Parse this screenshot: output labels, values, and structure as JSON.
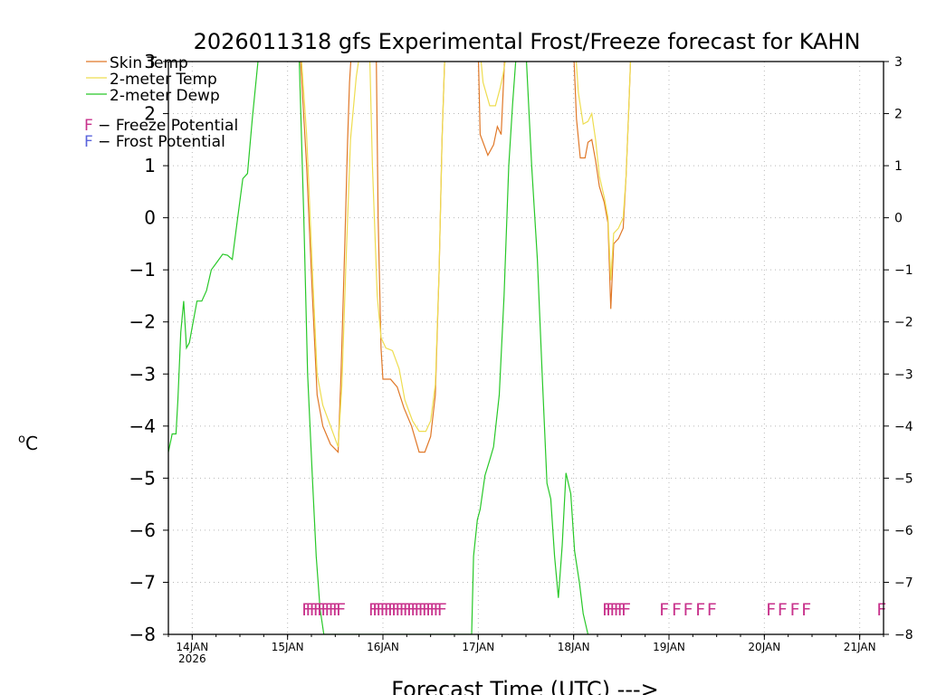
{
  "chart_data": {
    "type": "line",
    "title": "2026011318 gfs Experimental Frost/Freeze forecast for KAHN",
    "xlabel": "Forecast Time (UTC) --->",
    "ylabel": "°C",
    "ylabel_unit": "C",
    "ylabel_degree": "o",
    "ylim": [
      -8,
      3
    ],
    "xlim": [
      -0.25,
      7.25
    ],
    "yticks": [
      -8,
      -7,
      -6,
      -5,
      -4,
      -3,
      -2,
      -1,
      0,
      1,
      2,
      3
    ],
    "ytick_labels": [
      "−8",
      "−7",
      "−6",
      "−5",
      "−4",
      "−3",
      "−2",
      "−1",
      "0",
      "1",
      "2",
      "3"
    ],
    "xticks": [
      {
        "x": 0,
        "label": "14JAN",
        "sublabel": "2026"
      },
      {
        "x": 1,
        "label": "15JAN"
      },
      {
        "x": 2,
        "label": "16JAN"
      },
      {
        "x": 3,
        "label": "17JAN"
      },
      {
        "x": 4,
        "label": "18JAN"
      },
      {
        "x": 5,
        "label": "19JAN"
      },
      {
        "x": 6,
        "label": "20JAN"
      },
      {
        "x": 7,
        "label": "21JAN"
      }
    ],
    "grid": true,
    "series": [
      {
        "name": "Skin Temp",
        "legend": "Skin Temp",
        "color": "#e07828",
        "points": [
          [
            1.13,
            3.2
          ],
          [
            1.2,
            1.0
          ],
          [
            1.26,
            -1.5
          ],
          [
            1.31,
            -3.4
          ],
          [
            1.37,
            -4.0
          ],
          [
            1.45,
            -4.35
          ],
          [
            1.53,
            -4.5
          ],
          [
            1.56,
            -3.0
          ],
          [
            1.6,
            -0.5
          ],
          [
            1.63,
            1.5
          ],
          [
            1.65,
            2.6
          ],
          [
            1.67,
            3.2
          ],
          [
            1.93,
            3.2
          ],
          [
            1.95,
            0.0
          ],
          [
            1.98,
            -2.5
          ],
          [
            2.0,
            -3.1
          ],
          [
            2.08,
            -3.1
          ],
          [
            2.15,
            -3.25
          ],
          [
            2.22,
            -3.65
          ],
          [
            2.3,
            -4.0
          ],
          [
            2.38,
            -4.5
          ],
          [
            2.44,
            -4.5
          ],
          [
            2.5,
            -4.2
          ],
          [
            2.55,
            -3.4
          ],
          [
            2.59,
            -1.0
          ],
          [
            2.62,
            1.5
          ],
          [
            2.65,
            3.2
          ],
          [
            3.0,
            3.2
          ],
          [
            3.02,
            1.6
          ],
          [
            3.1,
            1.2
          ],
          [
            3.16,
            1.4
          ],
          [
            3.2,
            1.75
          ],
          [
            3.24,
            1.6
          ],
          [
            3.28,
            3.2
          ],
          [
            4.0,
            3.2
          ],
          [
            4.03,
            1.9
          ],
          [
            4.07,
            1.15
          ],
          [
            4.12,
            1.15
          ],
          [
            4.15,
            1.45
          ],
          [
            4.19,
            1.5
          ],
          [
            4.23,
            1.1
          ],
          [
            4.27,
            0.6
          ],
          [
            4.32,
            0.3
          ],
          [
            4.36,
            -0.1
          ],
          [
            4.39,
            -1.75
          ],
          [
            4.42,
            -0.5
          ],
          [
            4.47,
            -0.4
          ],
          [
            4.52,
            -0.2
          ],
          [
            4.55,
            0.8
          ],
          [
            4.58,
            2.2
          ],
          [
            4.6,
            3.2
          ]
        ]
      },
      {
        "name": "2-meter Temp",
        "legend": "2-meter Temp",
        "color": "#eedd50",
        "points": [
          [
            1.14,
            3.2
          ],
          [
            1.2,
            1.6
          ],
          [
            1.26,
            -1.0
          ],
          [
            1.31,
            -3.0
          ],
          [
            1.37,
            -3.6
          ],
          [
            1.45,
            -4.0
          ],
          [
            1.53,
            -4.4
          ],
          [
            1.57,
            -3.2
          ],
          [
            1.61,
            -1.0
          ],
          [
            1.66,
            1.5
          ],
          [
            1.72,
            2.7
          ],
          [
            1.76,
            3.2
          ],
          [
            1.86,
            3.2
          ],
          [
            1.89,
            1.0
          ],
          [
            1.94,
            -1.5
          ],
          [
            1.98,
            -2.3
          ],
          [
            2.03,
            -2.5
          ],
          [
            2.1,
            -2.55
          ],
          [
            2.17,
            -2.9
          ],
          [
            2.23,
            -3.5
          ],
          [
            2.31,
            -3.9
          ],
          [
            2.38,
            -4.1
          ],
          [
            2.45,
            -4.1
          ],
          [
            2.5,
            -3.9
          ],
          [
            2.55,
            -3.2
          ],
          [
            2.59,
            -1.0
          ],
          [
            2.62,
            1.5
          ],
          [
            2.65,
            3.2
          ],
          [
            3.02,
            3.2
          ],
          [
            3.05,
            2.6
          ],
          [
            3.12,
            2.15
          ],
          [
            3.18,
            2.15
          ],
          [
            3.23,
            2.5
          ],
          [
            3.26,
            2.75
          ],
          [
            3.3,
            3.2
          ],
          [
            4.02,
            3.2
          ],
          [
            4.05,
            2.4
          ],
          [
            4.1,
            1.8
          ],
          [
            4.15,
            1.85
          ],
          [
            4.19,
            2.0
          ],
          [
            4.23,
            1.5
          ],
          [
            4.27,
            0.8
          ],
          [
            4.32,
            0.4
          ],
          [
            4.36,
            0.0
          ],
          [
            4.39,
            -1.2
          ],
          [
            4.42,
            -0.3
          ],
          [
            4.47,
            -0.2
          ],
          [
            4.52,
            0.0
          ],
          [
            4.55,
            0.8
          ],
          [
            4.58,
            2.2
          ],
          [
            4.6,
            3.2
          ]
        ]
      },
      {
        "name": "2-meter Dewp",
        "legend": "2-meter Dewp",
        "color": "#28c828",
        "points": [
          [
            -0.25,
            -4.5
          ],
          [
            -0.21,
            -4.15
          ],
          [
            -0.17,
            -4.15
          ],
          [
            -0.15,
            -3.5
          ],
          [
            -0.12,
            -2.2
          ],
          [
            -0.09,
            -1.6
          ],
          [
            -0.06,
            -2.5
          ],
          [
            -0.03,
            -2.4
          ],
          [
            0.0,
            -2.1
          ],
          [
            0.05,
            -1.6
          ],
          [
            0.1,
            -1.6
          ],
          [
            0.15,
            -1.4
          ],
          [
            0.2,
            -1.0
          ],
          [
            0.26,
            -0.85
          ],
          [
            0.32,
            -0.7
          ],
          [
            0.37,
            -0.72
          ],
          [
            0.42,
            -0.8
          ],
          [
            0.47,
            -0.1
          ],
          [
            0.53,
            0.75
          ],
          [
            0.58,
            0.85
          ],
          [
            0.63,
            1.9
          ],
          [
            0.7,
            3.2
          ],
          [
            1.12,
            3.2
          ],
          [
            1.17,
            0.0
          ],
          [
            1.21,
            -3.0
          ],
          [
            1.26,
            -5.0
          ],
          [
            1.3,
            -6.5
          ],
          [
            1.34,
            -7.5
          ],
          [
            1.38,
            -8.0
          ],
          [
            2.93,
            -8.0
          ],
          [
            2.95,
            -6.5
          ],
          [
            2.99,
            -5.8
          ],
          [
            3.02,
            -5.6
          ],
          [
            3.07,
            -4.95
          ],
          [
            3.12,
            -4.65
          ],
          [
            3.16,
            -4.4
          ],
          [
            3.22,
            -3.4
          ],
          [
            3.27,
            -1.5
          ],
          [
            3.32,
            1.0
          ],
          [
            3.36,
            2.2
          ],
          [
            3.4,
            3.2
          ],
          [
            3.5,
            3.2
          ],
          [
            3.56,
            1.0
          ],
          [
            3.62,
            -0.8
          ],
          [
            3.67,
            -3.0
          ],
          [
            3.72,
            -5.1
          ],
          [
            3.76,
            -5.4
          ],
          [
            3.8,
            -6.5
          ],
          [
            3.84,
            -7.3
          ],
          [
            3.88,
            -6.3
          ],
          [
            3.92,
            -4.9
          ],
          [
            3.97,
            -5.3
          ],
          [
            4.01,
            -6.4
          ],
          [
            4.06,
            -7.0
          ],
          [
            4.1,
            -7.6
          ],
          [
            4.15,
            -8.0
          ]
        ]
      }
    ],
    "legend_items": [
      {
        "label": "Skin Temp",
        "color": "#e07828"
      },
      {
        "label": "2-meter Temp",
        "color": "#eedd50"
      },
      {
        "label": "2-meter Dewp",
        "color": "#28c828"
      }
    ],
    "potential_legend": [
      {
        "letter": "F",
        "text": "− Freeze Potential",
        "color": "#c8328c"
      },
      {
        "letter": "F",
        "text": "− Frost Potential",
        "color": "#5a64dc"
      }
    ],
    "annotation_y": -7.5,
    "freeze_flag_groups": [
      {
        "text": "FFFFF",
        "x": [
          1.2,
          1.24,
          1.28,
          1.32,
          1.36,
          1.4,
          1.44,
          1.48,
          1.52,
          1.56
        ]
      },
      {
        "text": "FFFFFFFF",
        "x": [
          1.9,
          1.94,
          1.98,
          2.02,
          2.06,
          2.1,
          2.14,
          2.18,
          2.22,
          2.26,
          2.3,
          2.34,
          2.38,
          2.42,
          2.46,
          2.5,
          2.54,
          2.58,
          2.62
        ]
      },
      {
        "text": "FFF",
        "x": [
          4.35,
          4.39,
          4.43,
          4.47,
          4.51,
          4.55
        ]
      },
      {
        "text": "FFFFF",
        "x": [
          4.95,
          5.08,
          5.2,
          5.33,
          5.45
        ]
      },
      {
        "text": "FFFF",
        "x": [
          6.07,
          6.19,
          6.32,
          6.44
        ]
      },
      {
        "text": "F",
        "x": [
          7.23
        ]
      }
    ]
  }
}
